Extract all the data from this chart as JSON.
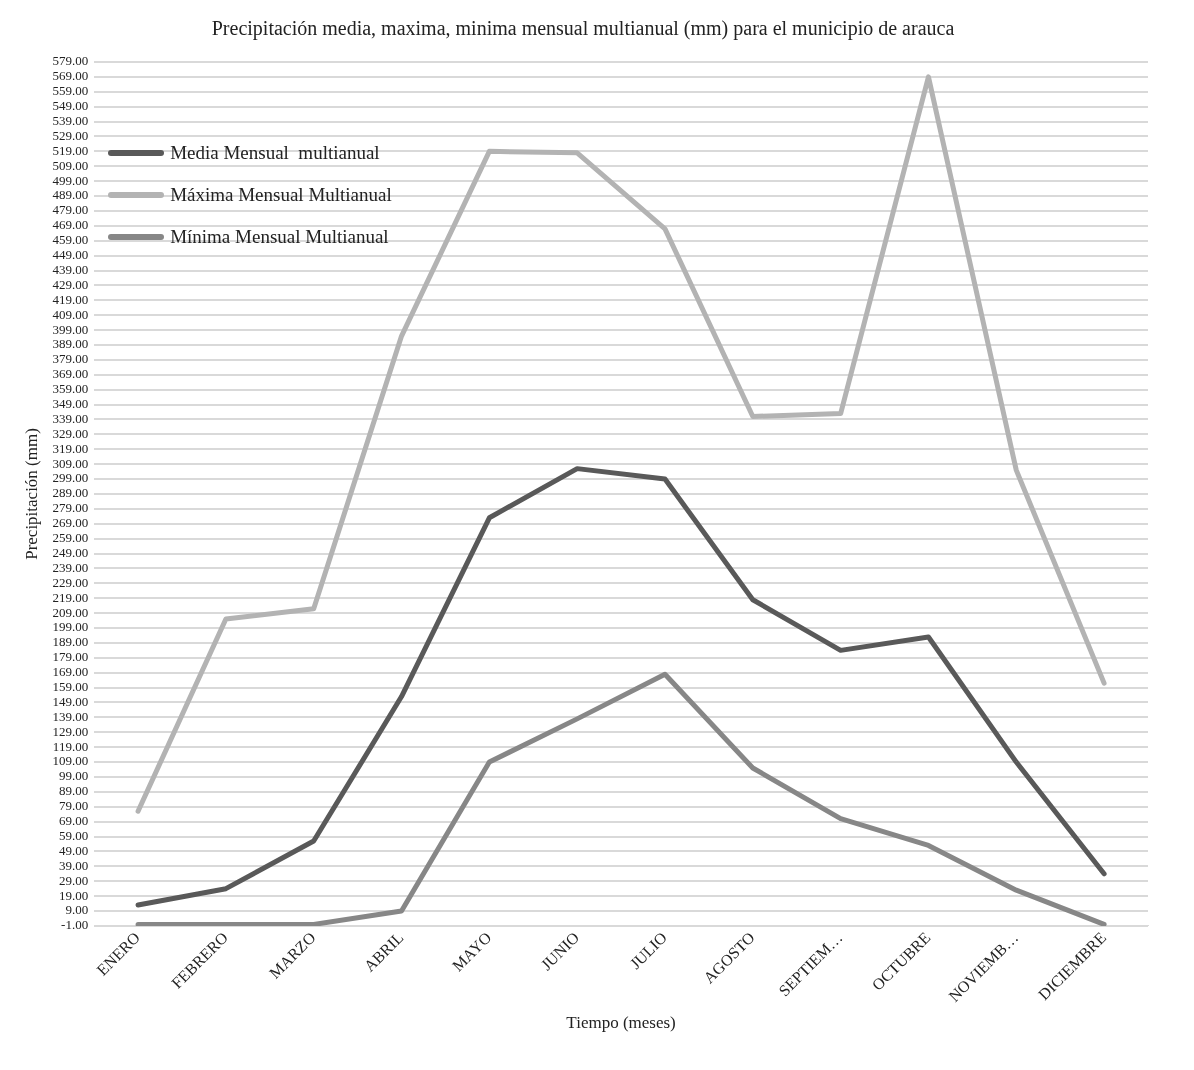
{
  "chart_data": {
    "type": "line",
    "title": "Precipitación media, maxima, minima mensual multianual (mm) para el municipio de arauca",
    "xlabel": "Tiempo (meses)",
    "ylabel": "Precipitación (mm)",
    "categories": [
      "ENERO",
      "FEBRERO",
      "MARZO",
      "ABRIL",
      "MAYO",
      "JUNIO",
      "JULIO",
      "AGOSTO",
      "SEPTIEM…",
      "OCTUBRE",
      "NOVIEMB…",
      "DICIEMBRE"
    ],
    "series": [
      {
        "name": "Media Mensual  multianual",
        "color": "#595959",
        "values": [
          13,
          24,
          56,
          153,
          273,
          306,
          299,
          218,
          184,
          193,
          109,
          34
        ]
      },
      {
        "name": "Máxima Mensual Multianual",
        "color": "#b3b3b3",
        "values": [
          76,
          205,
          212,
          395,
          519,
          518,
          467,
          341,
          343,
          569,
          305,
          162
        ]
      },
      {
        "name": "Mínima Mensual Multianual",
        "color": "#878787",
        "values": [
          0,
          0,
          0,
          9,
          109,
          138,
          168,
          105,
          71,
          53,
          23,
          0
        ]
      }
    ],
    "ylim": [
      -1,
      579
    ],
    "yticks": [
      {
        "value": -1,
        "label": "-1.00"
      },
      {
        "value": 9,
        "label": "9.00"
      },
      {
        "value": 19,
        "label": "19.00"
      },
      {
        "value": 29,
        "label": "29.00"
      },
      {
        "value": 39,
        "label": "39.00"
      },
      {
        "value": 49,
        "label": "49.00"
      },
      {
        "value": 59,
        "label": "59.00"
      },
      {
        "value": 69,
        "label": "69.00"
      },
      {
        "value": 79,
        "label": "79.00"
      },
      {
        "value": 89,
        "label": "89.00"
      },
      {
        "value": 99,
        "label": "99.00"
      },
      {
        "value": 109,
        "label": "109.00"
      },
      {
        "value": 119,
        "label": "119.00"
      },
      {
        "value": 129,
        "label": "129.00"
      },
      {
        "value": 139,
        "label": "139.00"
      },
      {
        "value": 149,
        "label": "149.00"
      },
      {
        "value": 159,
        "label": "159.00"
      },
      {
        "value": 169,
        "label": "169.00"
      },
      {
        "value": 179,
        "label": "179.00"
      },
      {
        "value": 189,
        "label": "189.00"
      },
      {
        "value": 199,
        "label": "199.00"
      },
      {
        "value": 209,
        "label": "209.00"
      },
      {
        "value": 219,
        "label": "219.00"
      },
      {
        "value": 229,
        "label": "229.00"
      },
      {
        "value": 239,
        "label": "239.00"
      },
      {
        "value": 249,
        "label": "249.00"
      },
      {
        "value": 259,
        "label": "259.00"
      },
      {
        "value": 269,
        "label": "269.00"
      },
      {
        "value": 279,
        "label": "279.00"
      },
      {
        "value": 289,
        "label": "289.00"
      },
      {
        "value": 299,
        "label": "299.00"
      },
      {
        "value": 309,
        "label": "309.00"
      },
      {
        "value": 319,
        "label": "319.00"
      },
      {
        "value": 329,
        "label": "329.00"
      },
      {
        "value": 339,
        "label": "339.00"
      },
      {
        "value": 349,
        "label": "349.00"
      },
      {
        "value": 359,
        "label": "359.00"
      },
      {
        "value": 369,
        "label": "369.00"
      },
      {
        "value": 379,
        "label": "379.00"
      },
      {
        "value": 389,
        "label": "389.00"
      },
      {
        "value": 399,
        "label": "399.00"
      },
      {
        "value": 409,
        "label": "409.00"
      },
      {
        "value": 419,
        "label": "419.00"
      },
      {
        "value": 429,
        "label": "429.00"
      },
      {
        "value": 439,
        "label": "439.00"
      },
      {
        "value": 449,
        "label": "449.00"
      },
      {
        "value": 459,
        "label": "459.00"
      },
      {
        "value": 469,
        "label": "469.00"
      },
      {
        "value": 479,
        "label": "479.00"
      },
      {
        "value": 489,
        "label": "489.00"
      },
      {
        "value": 499,
        "label": "499.00"
      },
      {
        "value": 509,
        "label": "509.00"
      },
      {
        "value": 519,
        "label": "519.00"
      },
      {
        "value": 529,
        "label": "529.00"
      },
      {
        "value": 539,
        "label": "539.00"
      },
      {
        "value": 549,
        "label": "549.00"
      },
      {
        "value": 559,
        "label": "559.00"
      },
      {
        "value": 569,
        "label": "569.00"
      },
      {
        "value": 579,
        "label": "579.00"
      }
    ],
    "grid": "y",
    "legend": "top left",
    "marker": "none",
    "line_style": "solid"
  }
}
